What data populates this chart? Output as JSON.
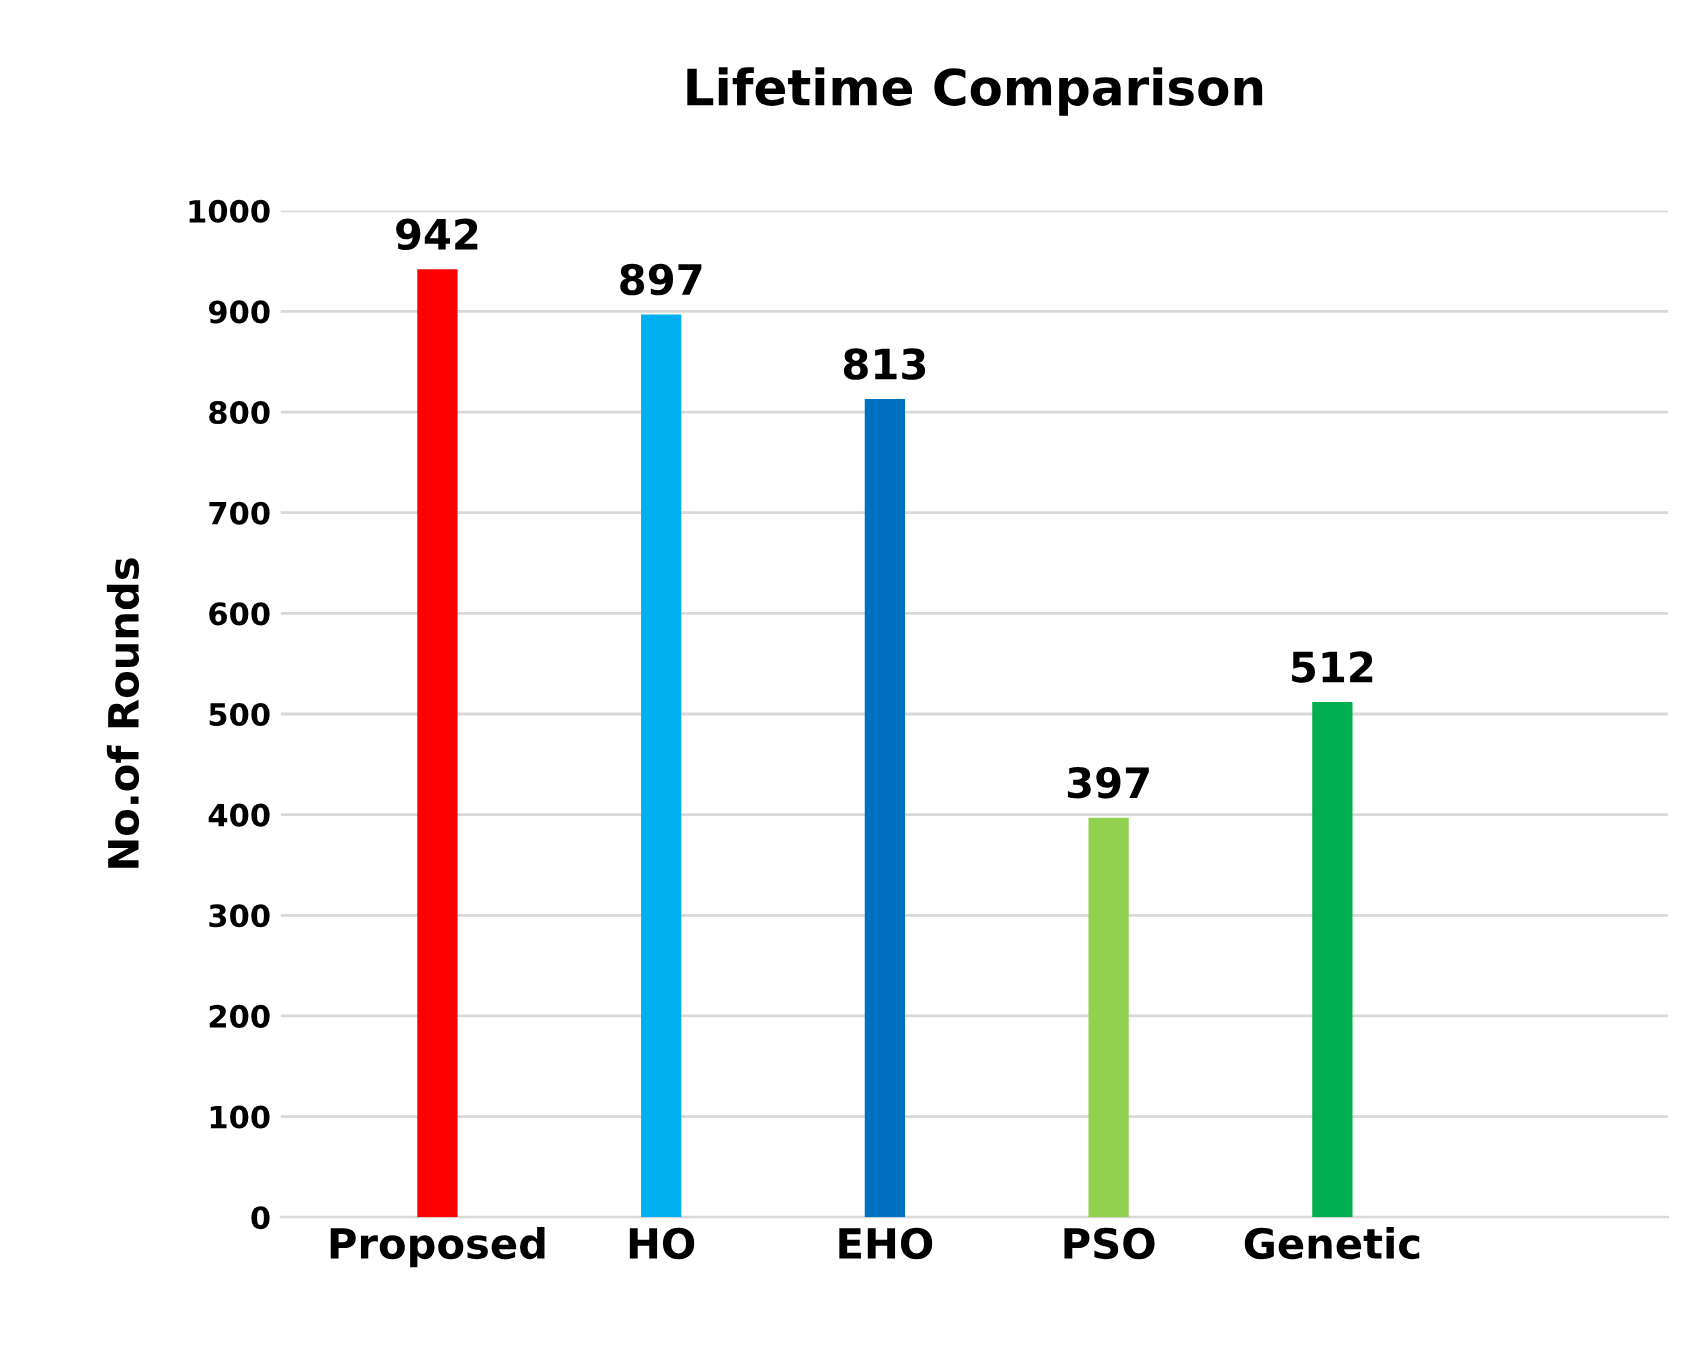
{
  "chart_data": {
    "type": "bar",
    "title": "Lifetime Comparison",
    "ylabel": "No.of Rounds",
    "categories": [
      "Proposed",
      "HO",
      "EHO",
      "PSO",
      "Genetic",
      null
    ],
    "values": [
      942,
      897,
      813,
      397,
      512,
      null
    ],
    "colors": [
      "#ff0000",
      "#00b0f0",
      "#0070c0",
      "#92d050",
      "#00b050",
      "#808080"
    ],
    "ylim": [
      0,
      1000
    ],
    "yticks": [
      0,
      100,
      200,
      300,
      400,
      500,
      600,
      700,
      800,
      900,
      1000
    ],
    "grid": "y",
    "legend": false,
    "data_labels": true
  }
}
